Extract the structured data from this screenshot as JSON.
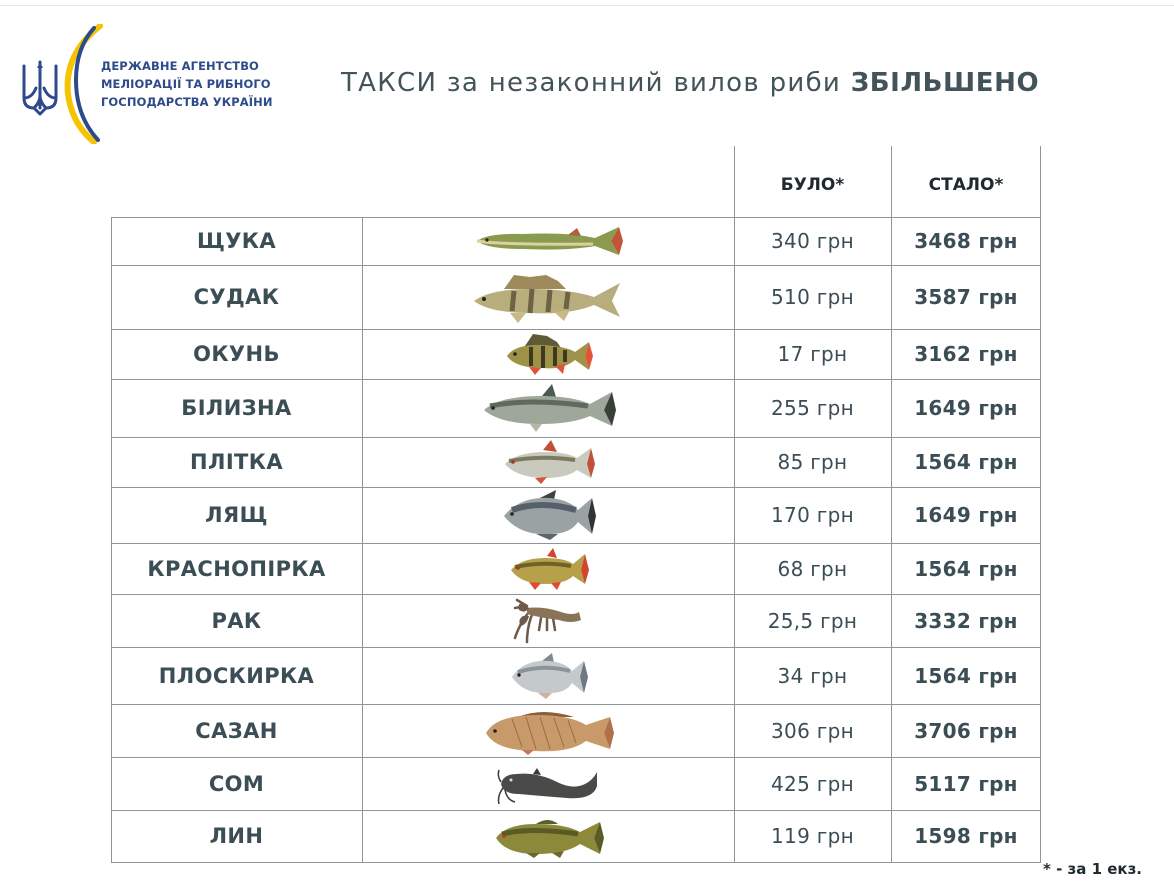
{
  "header": {
    "agency_lines": [
      "ДЕРЖАВНЕ АГЕНТСТВО",
      "МЕЛІОРАЦІЇ ТА РИБНОГО",
      "ГОСПОДАРСТВА УКРАЇНИ"
    ],
    "title_regular": "ТАКСИ за незаконний вилов риби",
    "title_bold": "ЗБІЛЬШЕНО",
    "brand_color": "#2d4a8a",
    "accent_color": "#f5c400"
  },
  "table": {
    "headers": {
      "before": "БУЛО*",
      "after": "СТАЛО*"
    },
    "rows": [
      {
        "name": "ЩУКА",
        "before": "340 грн",
        "after": "3468 грн",
        "icon": "pike-icon"
      },
      {
        "name": "СУДАК",
        "before": "510 грн",
        "after": "3587 грн",
        "icon": "zander-icon"
      },
      {
        "name": "ОКУНЬ",
        "before": "17 грн",
        "after": "3162 грн",
        "icon": "perch-icon"
      },
      {
        "name": "БІЛИЗНА",
        "before": "255 грн",
        "after": "1649 грн",
        "icon": "asp-icon"
      },
      {
        "name": "ПЛІТКА",
        "before": "85 грн",
        "after": "1564 грн",
        "icon": "roach-icon"
      },
      {
        "name": "ЛЯЩ",
        "before": "170 грн",
        "after": "1649 грн",
        "icon": "bream-icon"
      },
      {
        "name": "КРАСНОПІРКА",
        "before": "68 грн",
        "after": "1564 грн",
        "icon": "rudd-icon"
      },
      {
        "name": "РАК",
        "before": "25,5 грн",
        "after": "3332 грн",
        "icon": "crayfish-icon"
      },
      {
        "name": "ПЛОСКИРКА",
        "before": "34 грн",
        "after": "1564 грн",
        "icon": "silver-bream-icon"
      },
      {
        "name": "САЗАН",
        "before": "306 грн",
        "after": "3706 грн",
        "icon": "carp-icon"
      },
      {
        "name": "СОМ",
        "before": "425 грн",
        "after": "5117 грн",
        "icon": "catfish-icon"
      },
      {
        "name": "ЛИН",
        "before": "119 грн",
        "after": "1598 грн",
        "icon": "tench-icon"
      }
    ]
  },
  "footnote": "* - за 1 екз."
}
